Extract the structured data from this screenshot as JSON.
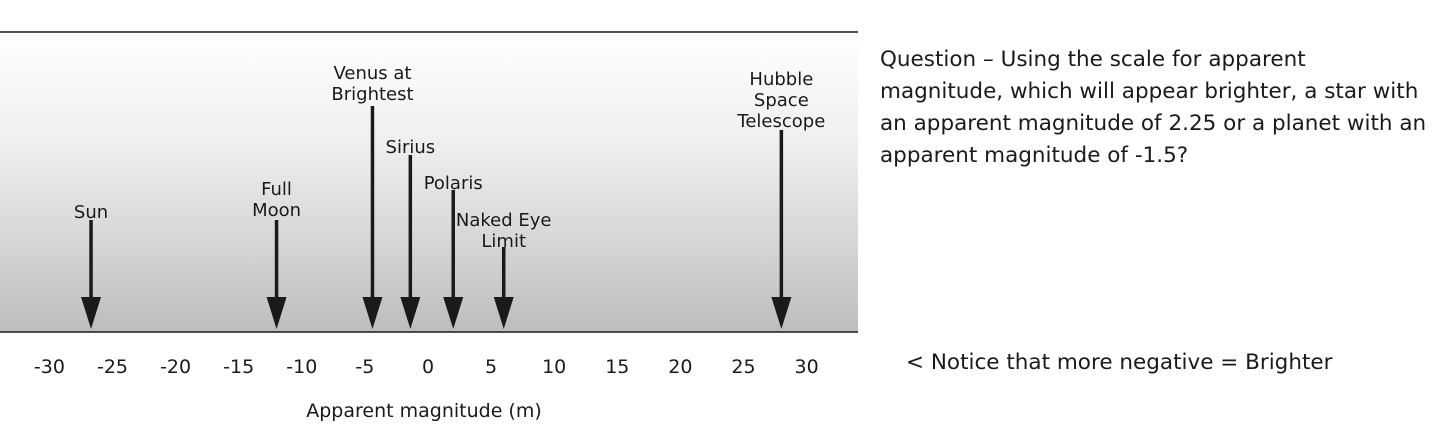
{
  "scale": {
    "axis_title": "Apparent magnitude (m)",
    "ticks": [
      -30,
      -25,
      -20,
      -15,
      -10,
      -5,
      0,
      5,
      10,
      15,
      20,
      25,
      30
    ],
    "objects": [
      {
        "key": "sun",
        "lines": [
          "Sun"
        ],
        "magnitude": -26.7
      },
      {
        "key": "full-moon",
        "lines": [
          "Full",
          "Moon"
        ],
        "magnitude": -12.0
      },
      {
        "key": "venus",
        "lines": [
          "Venus at",
          "Brightest"
        ],
        "magnitude": -4.4
      },
      {
        "key": "sirius",
        "lines": [
          "Sirius"
        ],
        "magnitude": -1.4
      },
      {
        "key": "polaris",
        "lines": [
          "Polaris"
        ],
        "magnitude": 2.0
      },
      {
        "key": "naked-eye-limit",
        "lines": [
          "Naked Eye",
          "Limit"
        ],
        "magnitude": 6.0
      },
      {
        "key": "hubble",
        "lines": [
          "Hubble",
          "Space",
          "Telescope"
        ],
        "magnitude": 28.0
      }
    ]
  },
  "question": "Question – Using the scale for apparent magnitude, which will appear brighter, a star with an apparent magnitude of 2.25 or a planet with an apparent magnitude of -1.5?",
  "notice": "< Notice that more negative = Brighter",
  "colors": {
    "ink": "#1a1a1a",
    "band_top": "#ffffff",
    "band_bottom": "#bdbdbd"
  }
}
